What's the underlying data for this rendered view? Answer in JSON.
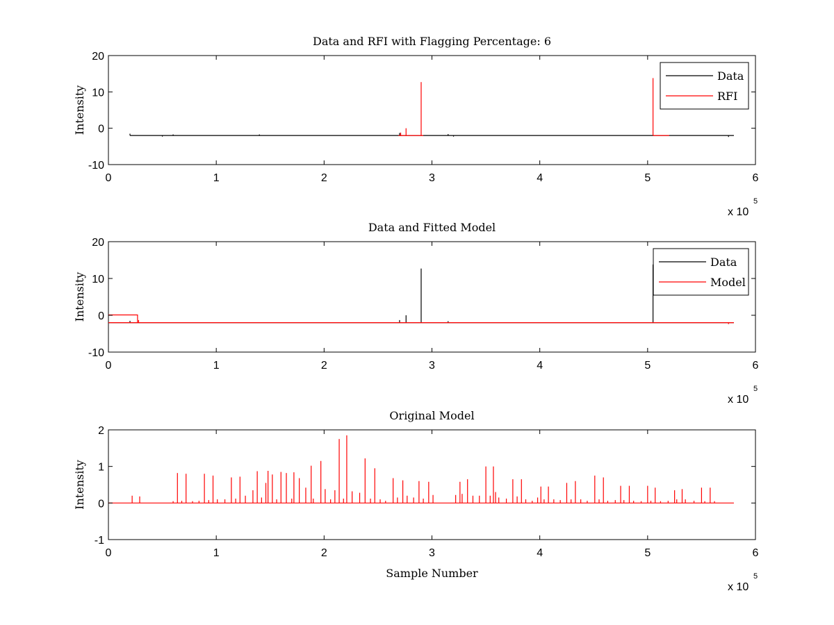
{
  "figure": {
    "background": "#ffffff"
  },
  "chart_data": [
    {
      "type": "line",
      "title": "Data and RFI with Flagging Percentage: 6",
      "xlabel": "",
      "ylabel": "Intensity",
      "xlim": [
        0,
        600000
      ],
      "ylim": [
        -10,
        20
      ],
      "xticks": [
        0,
        1,
        2,
        3,
        4,
        5,
        6
      ],
      "yticks": [
        -10,
        0,
        10,
        20
      ],
      "x_multiplier": "x 10",
      "x_multiplier_exp": "5",
      "legend_position": "top-right",
      "series": [
        {
          "name": "Data",
          "color": "#000000",
          "baseline": -2,
          "x_range": [
            20000,
            580000
          ],
          "spikes": [
            {
              "x": 20000,
              "y": -1.5
            },
            {
              "x": 50000,
              "y": -2.3
            },
            {
              "x": 60000,
              "y": -1.7
            },
            {
              "x": 140000,
              "y": -1.7
            },
            {
              "x": 270000,
              "y": -1.3
            },
            {
              "x": 315000,
              "y": -1.6
            },
            {
              "x": 320000,
              "y": -2.3
            },
            {
              "x": 575000,
              "y": -2.4
            }
          ]
        },
        {
          "name": "RFI",
          "color": "#ff0000",
          "segments": [
            [
              269000,
              292000
            ],
            [
              505000,
              520000
            ]
          ],
          "baseline": -2,
          "spikes": [
            {
              "x": 271000,
              "y": -1.2
            },
            {
              "x": 276000,
              "y": 0
            },
            {
              "x": 290000,
              "y": 12.7
            },
            {
              "x": 505000,
              "y": 13.8
            }
          ]
        }
      ]
    },
    {
      "type": "line",
      "title": "Data and Fitted Model",
      "xlabel": "",
      "ylabel": "Intensity",
      "xlim": [
        0,
        600000
      ],
      "ylim": [
        -10,
        20
      ],
      "xticks": [
        0,
        1,
        2,
        3,
        4,
        5,
        6
      ],
      "yticks": [
        -10,
        0,
        10,
        20
      ],
      "x_multiplier": "x 10",
      "x_multiplier_exp": "5",
      "legend_position": "top-right",
      "series": [
        {
          "name": "Data",
          "color": "#000000",
          "baseline": -2,
          "x_range": [
            0,
            580000
          ],
          "spikes": [
            {
              "x": 20000,
              "y": -1.5
            },
            {
              "x": 270000,
              "y": -1.3
            },
            {
              "x": 276000,
              "y": 0
            },
            {
              "x": 290000,
              "y": 12.7
            },
            {
              "x": 315000,
              "y": -1.6
            },
            {
              "x": 505000,
              "y": 13.8
            }
          ]
        },
        {
          "name": "Model",
          "color": "#ff0000",
          "baseline": -2,
          "x_range": [
            0,
            580000
          ],
          "step": {
            "x_start": 0,
            "x_end": 27000,
            "y": 0.1
          },
          "spikes": [
            {
              "x": 28000,
              "y": -1.3
            },
            {
              "x": 575000,
              "y": -2.4
            }
          ]
        }
      ]
    },
    {
      "type": "line",
      "title": "Original Model",
      "xlabel": "Sample Number",
      "ylabel": "Intensity",
      "xlim": [
        0,
        600000
      ],
      "ylim": [
        -1,
        2
      ],
      "xticks": [
        0,
        1,
        2,
        3,
        4,
        5,
        6
      ],
      "yticks": [
        -1,
        0,
        1,
        2
      ],
      "x_multiplier": "x 10",
      "x_multiplier_exp": "5",
      "series": [
        {
          "name": "",
          "color": "#ff0000",
          "baseline": 0,
          "x_range": [
            0,
            580000
          ],
          "spikes": [
            {
              "x": 22000,
              "y": 0.2
            },
            {
              "x": 29000,
              "y": 0.18
            },
            {
              "x": 60000,
              "y": 0.05
            },
            {
              "x": 64000,
              "y": 0.82
            },
            {
              "x": 68000,
              "y": 0.06
            },
            {
              "x": 72000,
              "y": 0.8
            },
            {
              "x": 78000,
              "y": 0.05
            },
            {
              "x": 84000,
              "y": 0.06
            },
            {
              "x": 89000,
              "y": 0.8
            },
            {
              "x": 93000,
              "y": 0.08
            },
            {
              "x": 97000,
              "y": 0.75
            },
            {
              "x": 101000,
              "y": 0.1
            },
            {
              "x": 108000,
              "y": 0.1
            },
            {
              "x": 114000,
              "y": 0.7
            },
            {
              "x": 118000,
              "y": 0.12
            },
            {
              "x": 122000,
              "y": 0.72
            },
            {
              "x": 127000,
              "y": 0.2
            },
            {
              "x": 134000,
              "y": 0.35
            },
            {
              "x": 138000,
              "y": 0.87
            },
            {
              "x": 142000,
              "y": 0.15
            },
            {
              "x": 146000,
              "y": 0.55
            },
            {
              "x": 148000,
              "y": 0.88
            },
            {
              "x": 152000,
              "y": 0.78
            },
            {
              "x": 156000,
              "y": 0.1
            },
            {
              "x": 160000,
              "y": 0.85
            },
            {
              "x": 165000,
              "y": 0.82
            },
            {
              "x": 170000,
              "y": 0.12
            },
            {
              "x": 172000,
              "y": 0.84
            },
            {
              "x": 177000,
              "y": 0.68
            },
            {
              "x": 183000,
              "y": 0.42
            },
            {
              "x": 188000,
              "y": 1.02
            },
            {
              "x": 190000,
              "y": 0.12
            },
            {
              "x": 197000,
              "y": 1.15
            },
            {
              "x": 201000,
              "y": 0.38
            },
            {
              "x": 206000,
              "y": 0.1
            },
            {
              "x": 210000,
              "y": 0.35
            },
            {
              "x": 214000,
              "y": 1.75
            },
            {
              "x": 218000,
              "y": 0.12
            },
            {
              "x": 221000,
              "y": 1.85
            },
            {
              "x": 226000,
              "y": 0.32
            },
            {
              "x": 233000,
              "y": 0.28
            },
            {
              "x": 238000,
              "y": 1.22
            },
            {
              "x": 243000,
              "y": 0.12
            },
            {
              "x": 247000,
              "y": 0.95
            },
            {
              "x": 252000,
              "y": 0.1
            },
            {
              "x": 257000,
              "y": 0.06
            },
            {
              "x": 264000,
              "y": 0.68
            },
            {
              "x": 268000,
              "y": 0.15
            },
            {
              "x": 273000,
              "y": 0.62
            },
            {
              "x": 277000,
              "y": 0.2
            },
            {
              "x": 283000,
              "y": 0.15
            },
            {
              "x": 288000,
              "y": 0.6
            },
            {
              "x": 292000,
              "y": 0.12
            },
            {
              "x": 297000,
              "y": 0.58
            },
            {
              "x": 301000,
              "y": 0.22
            },
            {
              "x": 322000,
              "y": 0.22
            },
            {
              "x": 326000,
              "y": 0.58
            },
            {
              "x": 328000,
              "y": 0.25
            },
            {
              "x": 333000,
              "y": 0.65
            },
            {
              "x": 338000,
              "y": 0.2
            },
            {
              "x": 344000,
              "y": 0.2
            },
            {
              "x": 350000,
              "y": 1.0
            },
            {
              "x": 354000,
              "y": 0.2
            },
            {
              "x": 357000,
              "y": 1.0
            },
            {
              "x": 359000,
              "y": 0.3
            },
            {
              "x": 362000,
              "y": 0.15
            },
            {
              "x": 369000,
              "y": 0.12
            },
            {
              "x": 375000,
              "y": 0.65
            },
            {
              "x": 379000,
              "y": 0.18
            },
            {
              "x": 383000,
              "y": 0.65
            },
            {
              "x": 387000,
              "y": 0.1
            },
            {
              "x": 393000,
              "y": 0.06
            },
            {
              "x": 398000,
              "y": 0.15
            },
            {
              "x": 401000,
              "y": 0.45
            },
            {
              "x": 404000,
              "y": 0.1
            },
            {
              "x": 408000,
              "y": 0.45
            },
            {
              "x": 413000,
              "y": 0.1
            },
            {
              "x": 419000,
              "y": 0.08
            },
            {
              "x": 425000,
              "y": 0.55
            },
            {
              "x": 429000,
              "y": 0.1
            },
            {
              "x": 433000,
              "y": 0.6
            },
            {
              "x": 438000,
              "y": 0.1
            },
            {
              "x": 444000,
              "y": 0.06
            },
            {
              "x": 451000,
              "y": 0.75
            },
            {
              "x": 455000,
              "y": 0.1
            },
            {
              "x": 459000,
              "y": 0.7
            },
            {
              "x": 463000,
              "y": 0.06
            },
            {
              "x": 470000,
              "y": 0.08
            },
            {
              "x": 475000,
              "y": 0.47
            },
            {
              "x": 478000,
              "y": 0.08
            },
            {
              "x": 483000,
              "y": 0.47
            },
            {
              "x": 487000,
              "y": 0.06
            },
            {
              "x": 494000,
              "y": 0.05
            },
            {
              "x": 500000,
              "y": 0.47
            },
            {
              "x": 503000,
              "y": 0.06
            },
            {
              "x": 507000,
              "y": 0.42
            },
            {
              "x": 512000,
              "y": 0.05
            },
            {
              "x": 519000,
              "y": 0.06
            },
            {
              "x": 525000,
              "y": 0.35
            },
            {
              "x": 527000,
              "y": 0.1
            },
            {
              "x": 532000,
              "y": 0.38
            },
            {
              "x": 535000,
              "y": 0.1
            },
            {
              "x": 543000,
              "y": 0.06
            },
            {
              "x": 550000,
              "y": 0.42
            },
            {
              "x": 553000,
              "y": 0.05
            },
            {
              "x": 558000,
              "y": 0.42
            },
            {
              "x": 562000,
              "y": 0.05
            }
          ]
        }
      ]
    }
  ]
}
